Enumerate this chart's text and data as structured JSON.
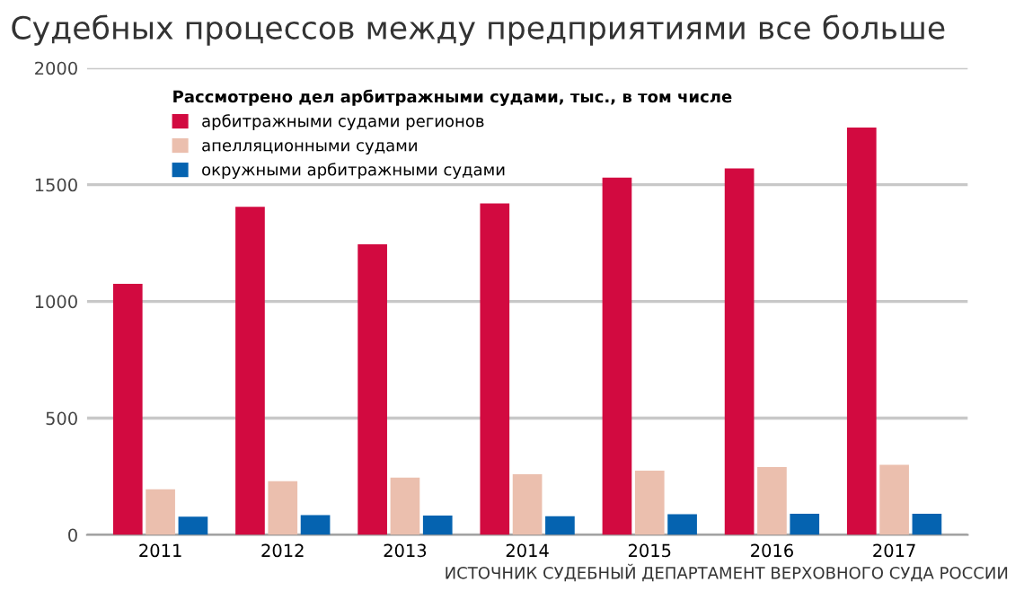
{
  "chart_data": {
    "type": "bar",
    "title": "Судебных процессов между предприятиями все больше",
    "legend_title": "Рассмотрено дел арбитражными судами, тыс., в том числе",
    "categories": [
      "2011",
      "2012",
      "2013",
      "2014",
      "2015",
      "2016",
      "2017"
    ],
    "series": [
      {
        "name": "арбитражными судами регионов",
        "color": "#d20a40",
        "values": [
          1075,
          1405,
          1245,
          1420,
          1530,
          1570,
          1745
        ]
      },
      {
        "name": "апелляционными судами",
        "color": "#ebbfae",
        "values": [
          195,
          230,
          245,
          260,
          275,
          290,
          300
        ]
      },
      {
        "name": "окружными арбитражными судами",
        "color": "#0563b0",
        "values": [
          78,
          85,
          83,
          80,
          88,
          90,
          90
        ]
      }
    ],
    "ylim": [
      0,
      2000
    ],
    "yticks": [
      0,
      500,
      1000,
      1500,
      2000
    ],
    "grid": "y",
    "legend": "top left",
    "annotations": [
      "ИСТОЧНИК СУДЕБНЫЙ ДЕПАРТАМЕНТ ВЕРХОВНОГО СУДА РОССИИ"
    ]
  }
}
